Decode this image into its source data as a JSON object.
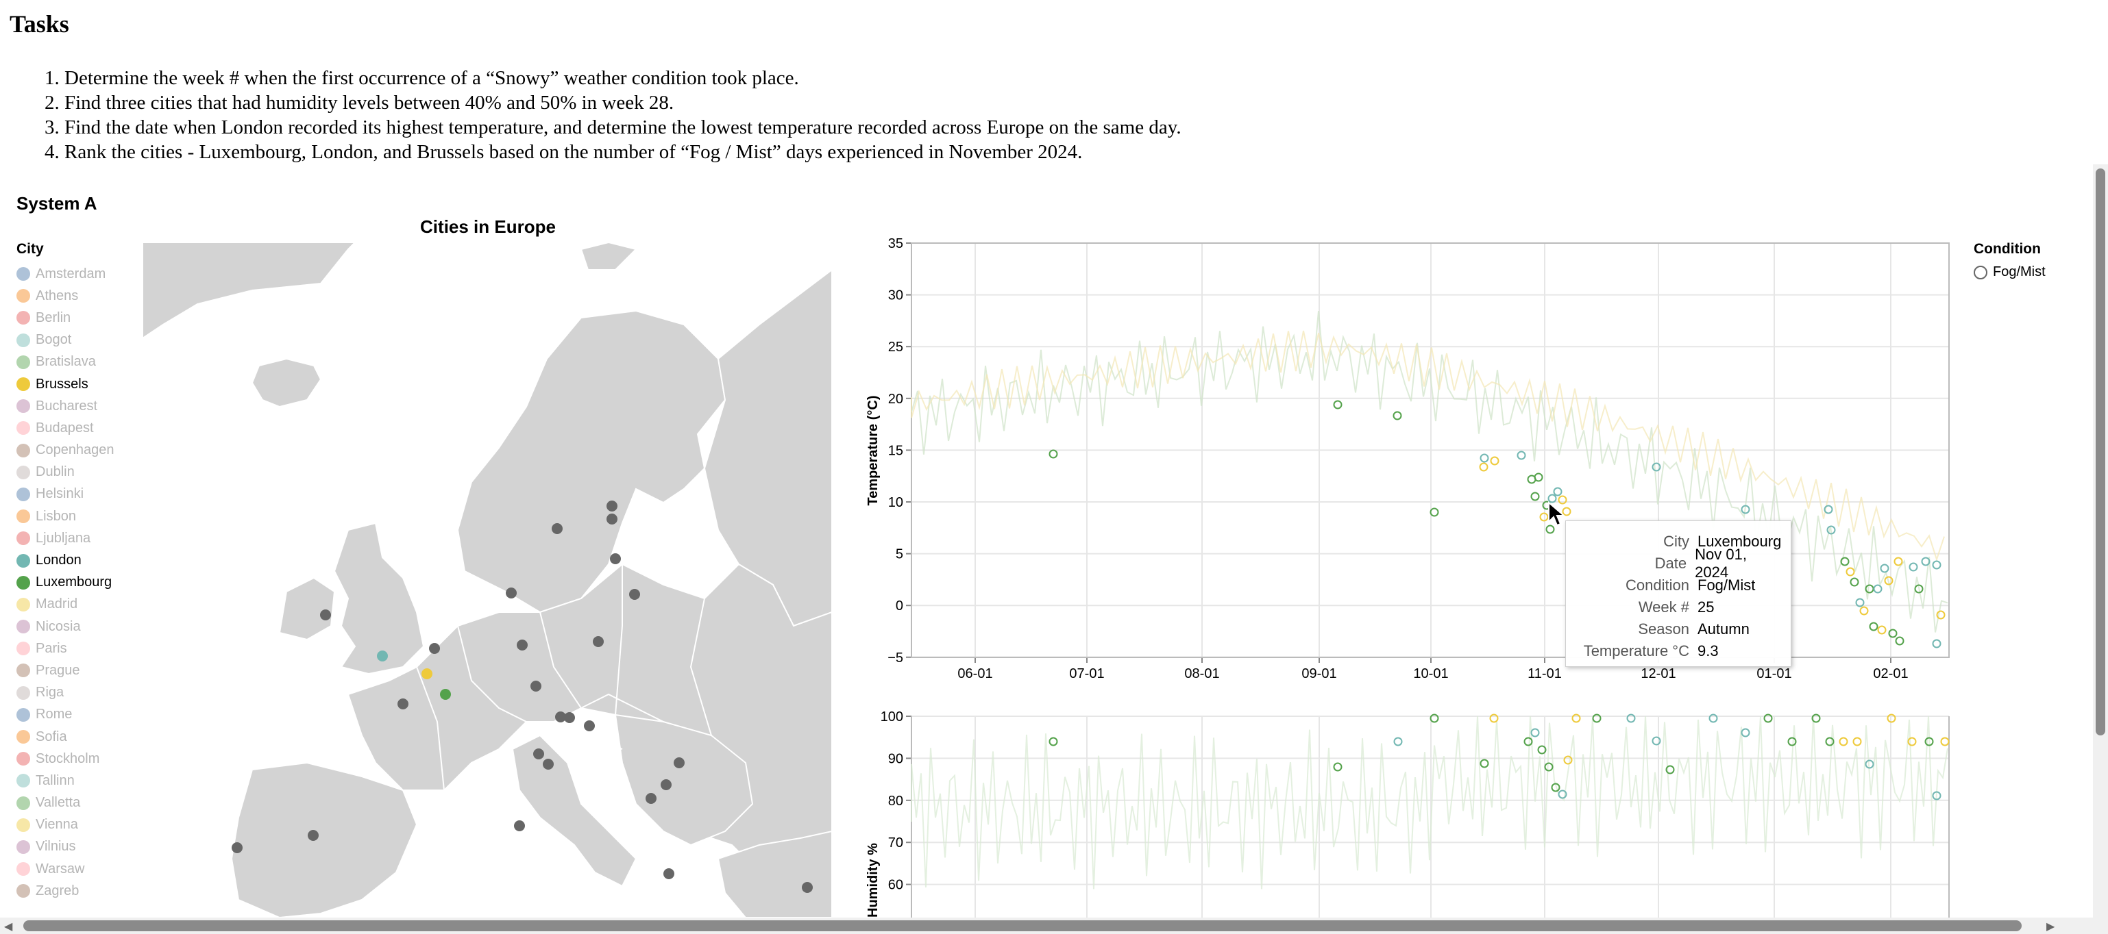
{
  "tasks": {
    "title": "Tasks",
    "items": [
      "Determine the week # when the first occurrence of a “Snowy” weather condition took place.",
      "Find three cities that had humidity levels between 40% and 50% in week 28.",
      "Find the date when London recorded its highest temperature, and determine the lowest temperature recorded across Europe on the same day.",
      "Rank the cities - Luxembourg, London, and Brussels based on the number of “Fog / Mist” days experienced in November 2024."
    ]
  },
  "system_label": "System A",
  "map": {
    "title": "Cities in Europe",
    "legend_title": "City",
    "cities": [
      {
        "name": "Amsterdam",
        "color": "#4c78a8",
        "active": false
      },
      {
        "name": "Athens",
        "color": "#f58518",
        "active": false
      },
      {
        "name": "Berlin",
        "color": "#e45756",
        "active": false
      },
      {
        "name": "Bogot",
        "color": "#72b7b2",
        "active": false
      },
      {
        "name": "Bratislava",
        "color": "#54a24b",
        "active": false
      },
      {
        "name": "Brussels",
        "color": "#eeca3b",
        "active": true
      },
      {
        "name": "Bucharest",
        "color": "#b279a2",
        "active": false
      },
      {
        "name": "Budapest",
        "color": "#ff9da6",
        "active": false
      },
      {
        "name": "Copenhagen",
        "color": "#9d755d",
        "active": false
      },
      {
        "name": "Dublin",
        "color": "#bab0ac",
        "active": false
      },
      {
        "name": "Helsinki",
        "color": "#4c78a8",
        "active": false
      },
      {
        "name": "Lisbon",
        "color": "#f58518",
        "active": false
      },
      {
        "name": "Ljubljana",
        "color": "#e45756",
        "active": false
      },
      {
        "name": "London",
        "color": "#72b7b2",
        "active": true
      },
      {
        "name": "Luxembourg",
        "color": "#54a24b",
        "active": true
      },
      {
        "name": "Madrid",
        "color": "#eeca3b",
        "active": false
      },
      {
        "name": "Nicosia",
        "color": "#b279a2",
        "active": false
      },
      {
        "name": "Paris",
        "color": "#ff9da6",
        "active": false
      },
      {
        "name": "Prague",
        "color": "#9d755d",
        "active": false
      },
      {
        "name": "Riga",
        "color": "#bab0ac",
        "active": false
      },
      {
        "name": "Rome",
        "color": "#4c78a8",
        "active": false
      },
      {
        "name": "Sofia",
        "color": "#f58518",
        "active": false
      },
      {
        "name": "Stockholm",
        "color": "#e45756",
        "active": false
      },
      {
        "name": "Tallinn",
        "color": "#72b7b2",
        "active": false
      },
      {
        "name": "Valletta",
        "color": "#54a24b",
        "active": false
      },
      {
        "name": "Vienna",
        "color": "#eeca3b",
        "active": false
      },
      {
        "name": "Vilnius",
        "color": "#b279a2",
        "active": false
      },
      {
        "name": "Warsaw",
        "color": "#ff9da6",
        "active": false
      },
      {
        "name": "Zagreb",
        "color": "#9d755d",
        "active": false
      }
    ]
  },
  "condition_legend": {
    "title": "Condition",
    "items": [
      "Fog/Mist"
    ]
  },
  "temperature_chart": {
    "ylabel": "Temperature (°C)",
    "y_ticks": [
      "35",
      "30",
      "25",
      "20",
      "15",
      "10",
      "5",
      "0",
      "−5"
    ],
    "x_ticks": [
      "06-01",
      "07-01",
      "08-01",
      "09-01",
      "10-01",
      "11-01",
      "12-01",
      "01-01",
      "02-01"
    ]
  },
  "humidity_chart": {
    "ylabel": "Humidity %",
    "y_ticks": [
      "100",
      "90",
      "80",
      "70",
      "60"
    ]
  },
  "tooltip": {
    "rows": [
      {
        "key": "City",
        "value": "Luxembourg"
      },
      {
        "key": "Date",
        "value": "Nov 01, 2024"
      },
      {
        "key": "Condition",
        "value": "Fog/Mist"
      },
      {
        "key": "Week #",
        "value": "25"
      },
      {
        "key": "Season",
        "value": "Autumn"
      },
      {
        "key": "Temperature °C",
        "value": "9.3"
      }
    ]
  },
  "colors": {
    "brussels": "#eeca3b",
    "london": "#72b7b2",
    "luxembourg": "#54a24b",
    "land": "#d3d3d3",
    "grid": "#e6e6e6"
  }
}
